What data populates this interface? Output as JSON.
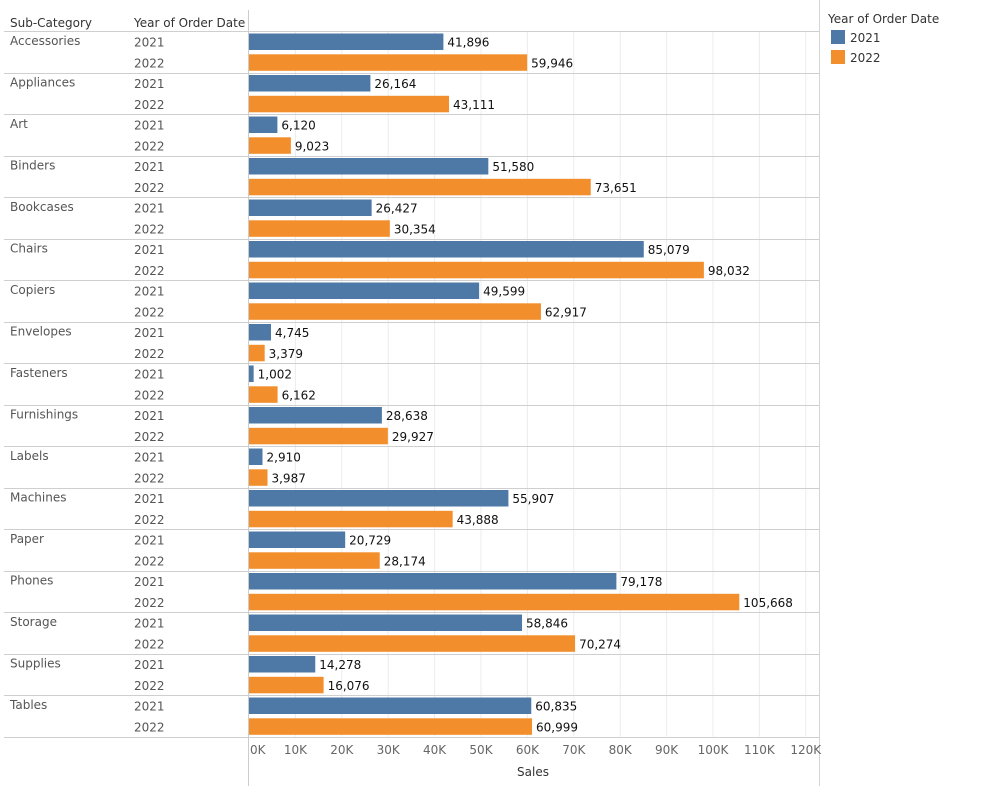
{
  "chart_data": {
    "type": "bar",
    "orientation": "horizontal",
    "title": "",
    "row_headers": [
      "Sub-Category",
      "Year of Order Date"
    ],
    "xlabel": "Sales",
    "ylabel": "",
    "xlim": [
      0,
      120000
    ],
    "x_ticks": [
      0,
      10000,
      20000,
      30000,
      40000,
      50000,
      60000,
      70000,
      80000,
      90000,
      100000,
      110000,
      120000
    ],
    "x_tick_labels": [
      "0K",
      "10K",
      "20K",
      "30K",
      "40K",
      "50K",
      "60K",
      "70K",
      "80K",
      "90K",
      "100K",
      "110K",
      "120K"
    ],
    "grid": true,
    "categories": [
      "Accessories",
      "Appliances",
      "Art",
      "Binders",
      "Bookcases",
      "Chairs",
      "Copiers",
      "Envelopes",
      "Fasteners",
      "Furnishings",
      "Labels",
      "Machines",
      "Paper",
      "Phones",
      "Storage",
      "Supplies",
      "Tables"
    ],
    "series": [
      {
        "name": "2021",
        "color": "#4e79a7",
        "values": [
          41896,
          26164,
          6120,
          51580,
          26427,
          85079,
          49599,
          4745,
          1002,
          28638,
          2910,
          55907,
          20729,
          79178,
          58846,
          14278,
          60835
        ],
        "labels": [
          "41,896",
          "26,164",
          "6,120",
          "51,580",
          "26,427",
          "85,079",
          "49,599",
          "4,745",
          "1,002",
          "28,638",
          "2,910",
          "55,907",
          "20,729",
          "79,178",
          "58,846",
          "14,278",
          "60,835"
        ]
      },
      {
        "name": "2022",
        "color": "#f28e2b",
        "values": [
          59946,
          43111,
          9023,
          73651,
          30354,
          98032,
          62917,
          3379,
          6162,
          29927,
          3987,
          43888,
          28174,
          105668,
          70274,
          16076,
          60999
        ],
        "labels": [
          "59,946",
          "43,111",
          "9,023",
          "73,651",
          "30,354",
          "98,032",
          "62,917",
          "3,379",
          "6,162",
          "29,927",
          "3,987",
          "43,888",
          "28,174",
          "105,668",
          "70,274",
          "16,076",
          "60,999"
        ]
      }
    ],
    "legend": {
      "title": "Year of Order Date",
      "placement": "top-right",
      "entries": [
        {
          "label": "2021",
          "color": "#4e79a7"
        },
        {
          "label": "2022",
          "color": "#f28e2b"
        }
      ]
    }
  }
}
